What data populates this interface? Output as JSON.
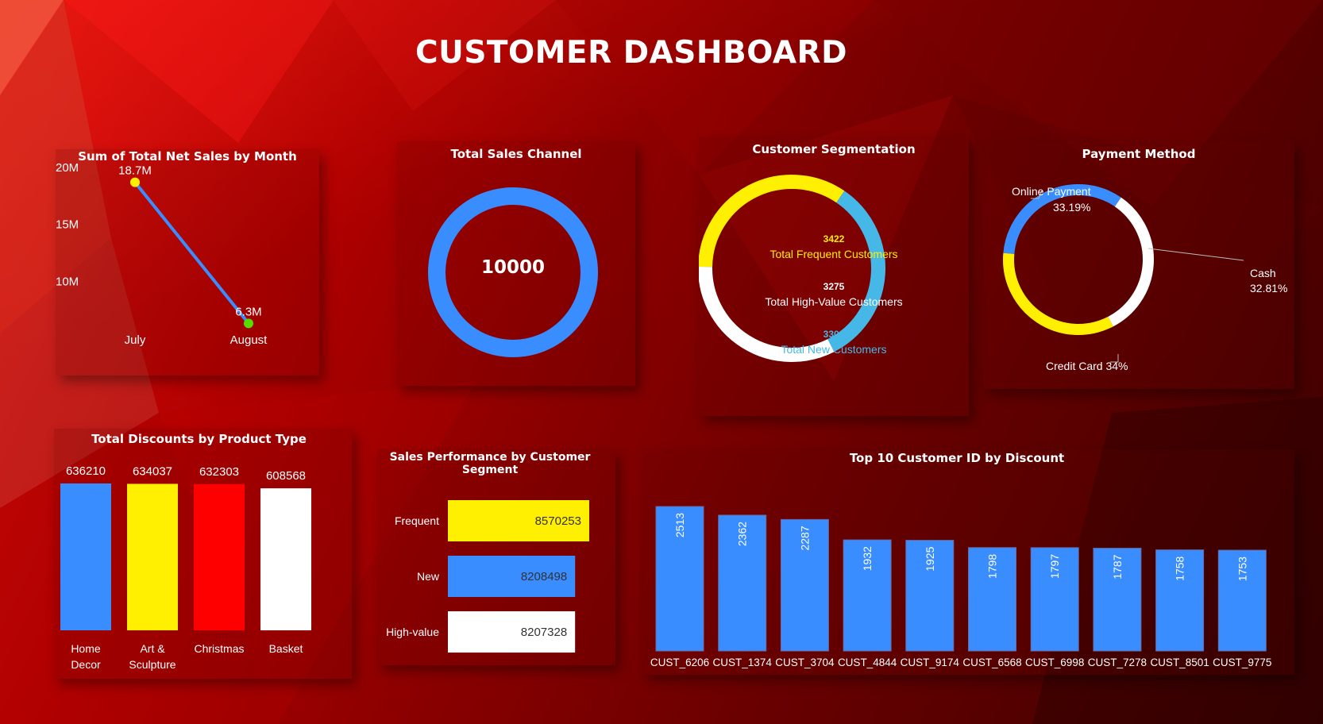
{
  "title": "CUSTOMER DASHBOARD",
  "colors": {
    "blue": "#3a8dff",
    "yellow": "#ffef00",
    "red": "#ff0000",
    "white": "#ffffff",
    "light_blue": "#45b8e8",
    "green": "#55dd00"
  },
  "chart_data": [
    {
      "type": "line",
      "title": "Sum of Total Net Sales by Month",
      "categories": [
        "July",
        "August"
      ],
      "values": [
        18.7,
        6.3
      ],
      "data_labels": [
        "18.7M",
        "6.3M"
      ],
      "yticks": [
        "10M",
        "15M",
        "20M"
      ],
      "ylim": [
        5,
        20
      ],
      "grid": false
    },
    {
      "type": "pie",
      "title": "Total Sales Channel",
      "center_value": "10000"
    },
    {
      "type": "pie",
      "title": "Customer Segmentation",
      "segments": [
        {
          "name": "Total Frequent Customers",
          "value": 3422,
          "value_label": "3422"
        },
        {
          "name": "Total High-Value Customers",
          "value": 3275,
          "value_label": "3275"
        },
        {
          "name": "Total New Customers",
          "value": 3303,
          "value_label": "3303"
        }
      ]
    },
    {
      "type": "pie",
      "title": "Payment Method",
      "segments": [
        {
          "name": "Online Payment",
          "value": 33.19,
          "value_label": "33.19%"
        },
        {
          "name": "Cash",
          "value": 32.81,
          "value_label": "32.81%"
        },
        {
          "name": "Credit Card",
          "value": 34,
          "value_label": "34%"
        }
      ],
      "labels": {
        "online": [
          "Online Payment",
          "33.19%"
        ],
        "cash": [
          "Cash",
          "32.81%"
        ],
        "credit": "Credit Card 34%"
      }
    },
    {
      "type": "bar",
      "title": "Total Discounts by Product Type",
      "categories": [
        [
          "Home",
          "Decor"
        ],
        [
          "Art &",
          "Sculpture"
        ],
        [
          "Christmas"
        ],
        [
          "Basket"
        ]
      ],
      "values": [
        636210,
        634037,
        632303,
        608568
      ],
      "value_labels": [
        "636210",
        "634037",
        "632303",
        "608568"
      ]
    },
    {
      "type": "bar",
      "orientation": "horizontal",
      "title": "Sales Performance by Customer Segment",
      "categories": [
        "Frequent",
        "New",
        "High-value"
      ],
      "values": [
        8570253,
        8208498,
        8207328
      ],
      "value_labels": [
        "8570253",
        "8208498",
        "8207328"
      ]
    },
    {
      "type": "bar",
      "title": "Top 10 Customer ID by Discount",
      "categories": [
        "CUST_6206",
        "CUST_1374",
        "CUST_3704",
        "CUST_4844",
        "CUST_9174",
        "CUST_6568",
        "CUST_6998",
        "CUST_7278",
        "CUST_8501",
        "CUST_9775"
      ],
      "values": [
        2513,
        2362,
        2287,
        1932,
        1925,
        1798,
        1797,
        1787,
        1758,
        1753
      ],
      "value_labels": [
        "2513",
        "2362",
        "2287",
        "1932",
        "1925",
        "1798",
        "1797",
        "1787",
        "1758",
        "1753"
      ]
    }
  ]
}
